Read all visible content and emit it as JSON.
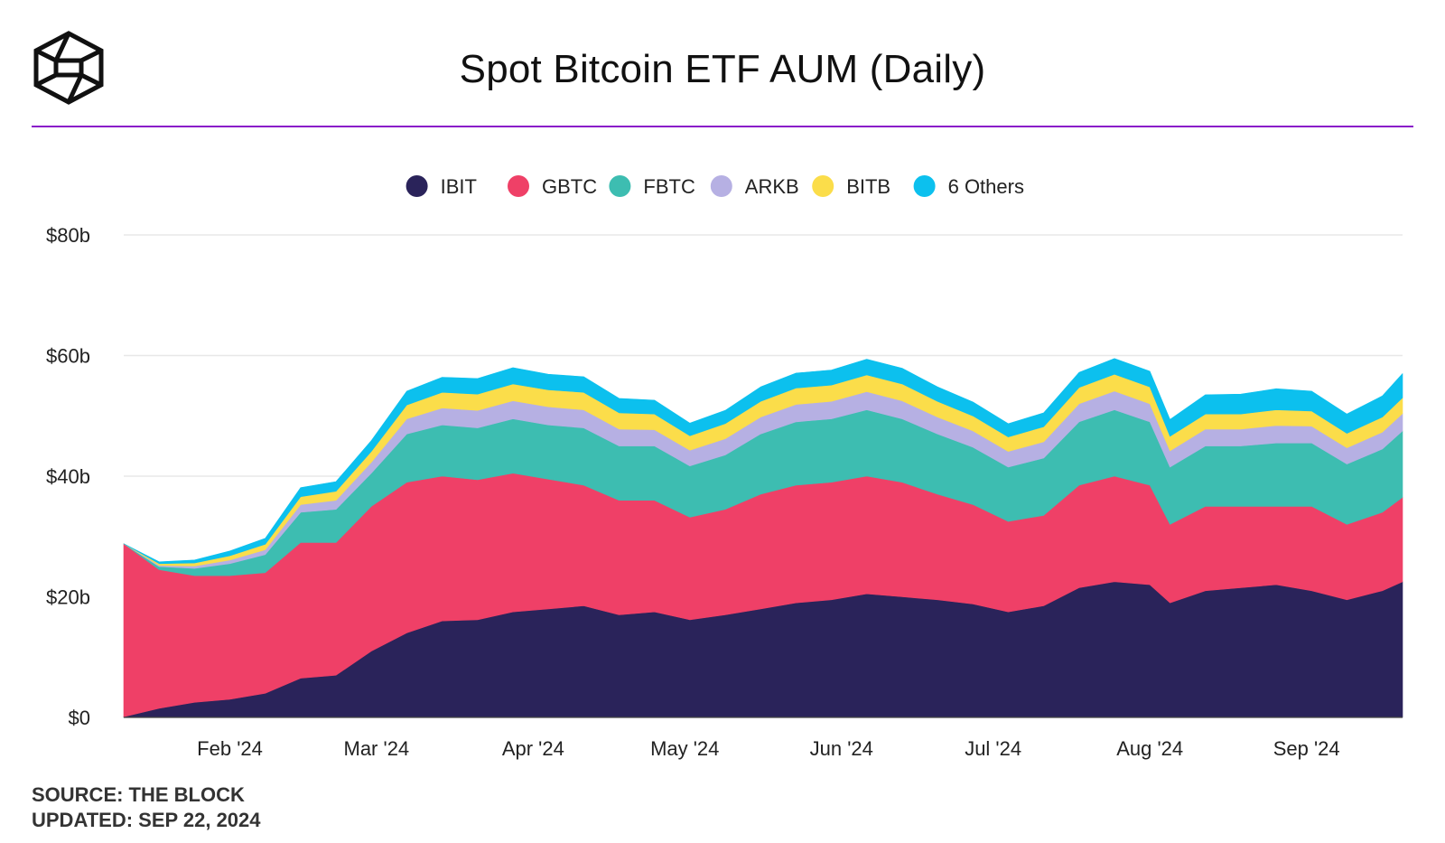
{
  "title": "Spot Bitcoin ETF AUM (Daily)",
  "footer": {
    "source": "SOURCE: THE BLOCK",
    "updated": "UPDATED: SEP 22, 2024"
  },
  "colors": {
    "divider": "#8a1ac9",
    "grid": "#e8e8e8",
    "axis_text": "#222222"
  },
  "chart_data": {
    "type": "area",
    "stacked": true,
    "title": "Spot Bitcoin ETF AUM (Daily)",
    "xlabel": "",
    "ylabel": "",
    "ylim": [
      0,
      80
    ],
    "y_ticks": [
      0,
      20,
      40,
      60,
      80
    ],
    "y_tick_labels": [
      "$0",
      "$20b",
      "$40b",
      "$60b",
      "$80b"
    ],
    "x_range": [
      "2024-01-11",
      "2024-09-20"
    ],
    "x_ticks": [
      {
        "date": "2024-02-01",
        "label": "Feb '24"
      },
      {
        "date": "2024-03-01",
        "label": "Mar '24"
      },
      {
        "date": "2024-04-01",
        "label": "Apr '24"
      },
      {
        "date": "2024-05-01",
        "label": "May '24"
      },
      {
        "date": "2024-06-01",
        "label": "Jun '24"
      },
      {
        "date": "2024-07-01",
        "label": "Jul '24"
      },
      {
        "date": "2024-08-01",
        "label": "Aug '24"
      },
      {
        "date": "2024-09-01",
        "label": "Sep '24"
      }
    ],
    "grid": true,
    "legend_position": "top-center",
    "x": [
      "2024-01-11",
      "2024-01-18",
      "2024-01-25",
      "2024-02-01",
      "2024-02-08",
      "2024-02-15",
      "2024-02-22",
      "2024-02-29",
      "2024-03-07",
      "2024-03-14",
      "2024-03-21",
      "2024-03-28",
      "2024-04-04",
      "2024-04-11",
      "2024-04-18",
      "2024-04-25",
      "2024-05-02",
      "2024-05-09",
      "2024-05-16",
      "2024-05-23",
      "2024-05-30",
      "2024-06-06",
      "2024-06-13",
      "2024-06-20",
      "2024-06-27",
      "2024-07-04",
      "2024-07-11",
      "2024-07-18",
      "2024-07-25",
      "2024-08-01",
      "2024-08-05",
      "2024-08-12",
      "2024-08-19",
      "2024-08-26",
      "2024-09-02",
      "2024-09-09",
      "2024-09-16",
      "2024-09-20"
    ],
    "series": [
      {
        "name": "IBIT",
        "color": "#2a235a",
        "values": [
          0.1,
          1.5,
          2.5,
          3.0,
          4.0,
          6.5,
          7.0,
          11.0,
          14.0,
          16.0,
          16.2,
          17.5,
          18.0,
          18.5,
          17.0,
          17.5,
          16.2,
          17.0,
          18.0,
          19.0,
          19.5,
          20.5,
          20.0,
          19.5,
          18.8,
          17.5,
          18.5,
          21.5,
          22.5,
          22.0,
          19.0,
          21.0,
          21.5,
          22.0,
          21.0,
          19.5,
          21.0,
          22.5
        ]
      },
      {
        "name": "GBTC",
        "color": "#ef4067",
        "values": [
          28.7,
          23.0,
          21.0,
          20.5,
          20.0,
          22.5,
          22.0,
          24.0,
          25.0,
          24.0,
          23.2,
          23.0,
          21.5,
          20.0,
          19.0,
          18.5,
          17.0,
          17.5,
          19.0,
          19.5,
          19.5,
          19.5,
          19.0,
          17.5,
          16.5,
          15.0,
          15.0,
          17.0,
          17.5,
          16.5,
          13.0,
          14.0,
          13.5,
          13.0,
          14.0,
          12.5,
          13.0,
          14.0
        ]
      },
      {
        "name": "FBTC",
        "color": "#3dbdb1",
        "values": [
          0.0,
          0.5,
          1.2,
          2.0,
          3.0,
          5.0,
          5.5,
          5.5,
          8.0,
          8.5,
          8.6,
          9.0,
          9.0,
          9.5,
          9.0,
          9.0,
          8.5,
          9.0,
          10.0,
          10.5,
          10.5,
          11.0,
          10.5,
          10.0,
          9.5,
          9.0,
          9.5,
          10.5,
          11.0,
          10.5,
          9.5,
          10.0,
          10.0,
          10.5,
          10.5,
          10.0,
          10.5,
          11.0
        ]
      },
      {
        "name": "ARKB",
        "color": "#b6b0e3",
        "values": [
          0.0,
          0.2,
          0.4,
          0.6,
          0.8,
          1.3,
          1.5,
          1.8,
          2.5,
          2.8,
          2.9,
          3.0,
          3.0,
          3.0,
          2.8,
          2.7,
          2.6,
          2.7,
          2.8,
          2.9,
          2.9,
          3.0,
          3.0,
          2.8,
          2.7,
          2.6,
          2.7,
          3.0,
          3.1,
          3.0,
          2.7,
          2.8,
          2.8,
          2.9,
          2.8,
          2.7,
          2.8,
          2.9
        ]
      },
      {
        "name": "BITB",
        "color": "#fbdd4a",
        "values": [
          0.0,
          0.3,
          0.5,
          0.7,
          0.9,
          1.3,
          1.5,
          1.8,
          2.3,
          2.6,
          2.7,
          2.8,
          2.8,
          2.9,
          2.7,
          2.6,
          2.4,
          2.5,
          2.6,
          2.7,
          2.7,
          2.8,
          2.8,
          2.6,
          2.5,
          2.4,
          2.5,
          2.7,
          2.8,
          2.8,
          2.4,
          2.5,
          2.5,
          2.6,
          2.5,
          2.4,
          2.5,
          2.6
        ]
      },
      {
        "name": "6 Others",
        "color": "#0cc0ee",
        "values": [
          0.0,
          0.3,
          0.5,
          0.8,
          1.0,
          1.5,
          1.6,
          1.8,
          2.3,
          2.5,
          2.6,
          2.7,
          2.6,
          2.6,
          2.4,
          2.3,
          2.1,
          2.2,
          2.4,
          2.5,
          2.5,
          2.6,
          2.6,
          2.4,
          2.3,
          2.2,
          2.3,
          2.5,
          2.6,
          2.6,
          2.8,
          3.2,
          3.3,
          3.5,
          3.3,
          3.2,
          3.5,
          4.0
        ]
      }
    ]
  }
}
